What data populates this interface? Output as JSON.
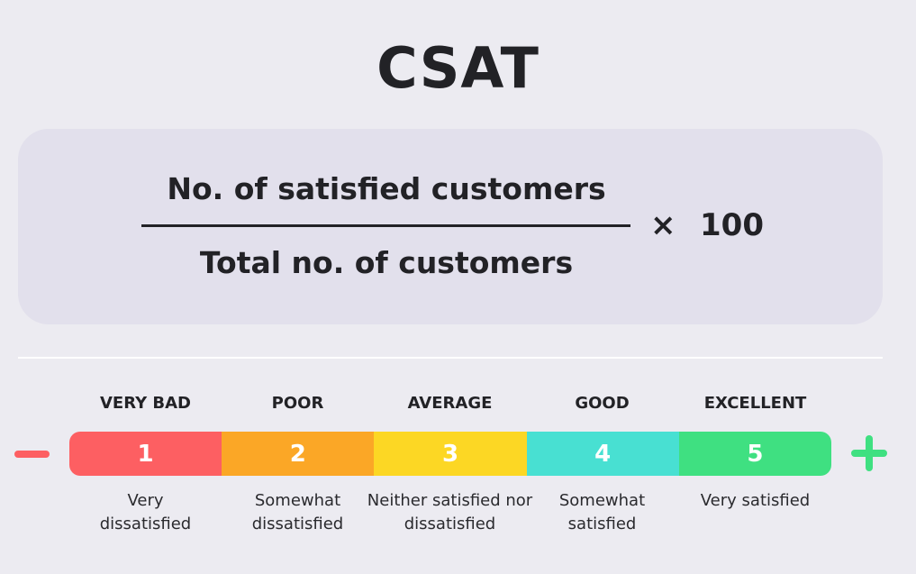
{
  "title": "CSAT",
  "formula": {
    "numerator": "No. of satisfied  customers",
    "denominator": "Total no. of customers",
    "operator": "×",
    "multiplier": "100"
  },
  "scale": {
    "minus_icon": "minus-icon",
    "plus_icon": "plus-icon",
    "items": [
      {
        "label": "VERY BAD",
        "value": "1",
        "description": "Very dissatisfied",
        "color": "#fd5f62"
      },
      {
        "label": "POOR",
        "value": "2",
        "description": "Somewhat dissatisfied",
        "color": "#fba726"
      },
      {
        "label": "AVERAGE",
        "value": "3",
        "description": "Neither satisfied nor dissatisfied",
        "color": "#fcd724"
      },
      {
        "label": "GOOD",
        "value": "4",
        "description": "Somewhat satisfied",
        "color": "#48e0d2"
      },
      {
        "label": "EXCELLENT",
        "value": "5",
        "description": "Very satisfied",
        "color": "#3fe081"
      }
    ]
  }
}
